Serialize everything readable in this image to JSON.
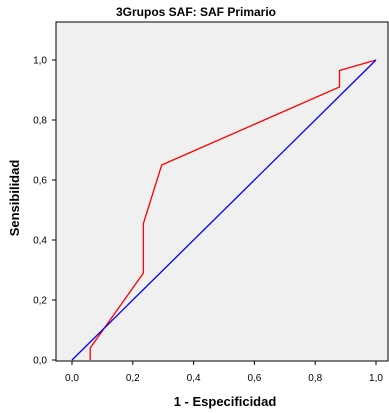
{
  "chart_data": {
    "type": "line",
    "title": "3Grupos SAF: SAF Primario",
    "xlabel": "1 - Especificidad",
    "ylabel": "Sensibilidad",
    "xlim": [
      0,
      1
    ],
    "ylim": [
      0,
      1
    ],
    "xticks": [
      "0,0",
      "0,2",
      "0,4",
      "0,6",
      "0,8",
      "1,0"
    ],
    "yticks": [
      "0,0",
      "0,2",
      "0,4",
      "0,6",
      "0,8",
      "1,0"
    ],
    "grid": false,
    "legend": "none",
    "series": [
      {
        "color": "#ff0000",
        "points": [
          [
            0.06,
            0.0
          ],
          [
            0.06,
            0.04
          ],
          [
            0.235,
            0.29
          ],
          [
            0.235,
            0.455
          ],
          [
            0.295,
            0.65
          ],
          [
            0.88,
            0.91
          ],
          [
            0.88,
            0.965
          ],
          [
            1.0,
            1.0
          ]
        ]
      },
      {
        "color": "#0000ff",
        "points": [
          [
            0.0,
            0.0
          ],
          [
            1.0,
            1.0
          ]
        ]
      }
    ]
  }
}
